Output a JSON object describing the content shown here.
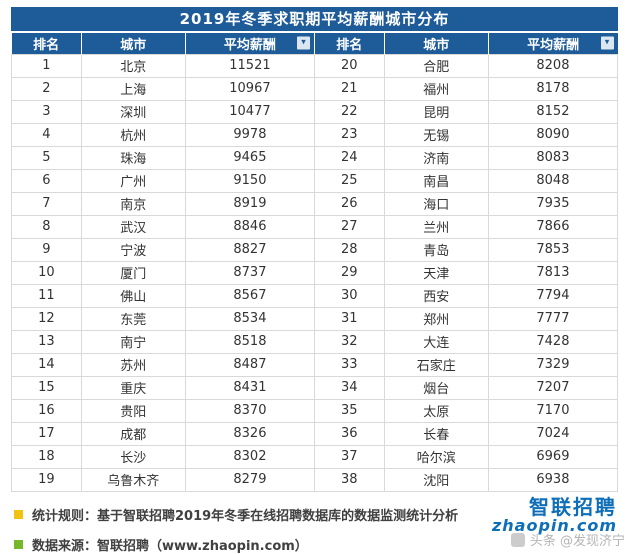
{
  "title": "2019年冬季求职期平均薪酬城市分布",
  "headers": {
    "rank": "排名",
    "city": "城市",
    "salary": "平均薪酬"
  },
  "chart_data": {
    "type": "table",
    "title": "2019年冬季求职期平均薪酬城市分布",
    "columns": [
      "排名",
      "城市",
      "平均薪酬"
    ],
    "rows": [
      [
        1,
        "北京",
        11521
      ],
      [
        2,
        "上海",
        10967
      ],
      [
        3,
        "深圳",
        10477
      ],
      [
        4,
        "杭州",
        9978
      ],
      [
        5,
        "珠海",
        9465
      ],
      [
        6,
        "广州",
        9150
      ],
      [
        7,
        "南京",
        8919
      ],
      [
        8,
        "武汉",
        8846
      ],
      [
        9,
        "宁波",
        8827
      ],
      [
        10,
        "厦门",
        8737
      ],
      [
        11,
        "佛山",
        8567
      ],
      [
        12,
        "东莞",
        8534
      ],
      [
        13,
        "南宁",
        8518
      ],
      [
        14,
        "苏州",
        8487
      ],
      [
        15,
        "重庆",
        8431
      ],
      [
        16,
        "贵阳",
        8370
      ],
      [
        17,
        "成都",
        8326
      ],
      [
        18,
        "长沙",
        8302
      ],
      [
        19,
        "乌鲁木齐",
        8279
      ],
      [
        20,
        "合肥",
        8208
      ],
      [
        21,
        "福州",
        8178
      ],
      [
        22,
        "昆明",
        8152
      ],
      [
        23,
        "无锡",
        8090
      ],
      [
        24,
        "济南",
        8083
      ],
      [
        25,
        "南昌",
        8048
      ],
      [
        26,
        "海口",
        7935
      ],
      [
        27,
        "兰州",
        7866
      ],
      [
        28,
        "青岛",
        7853
      ],
      [
        29,
        "天津",
        7813
      ],
      [
        30,
        "西安",
        7794
      ],
      [
        31,
        "郑州",
        7777
      ],
      [
        32,
        "大连",
        7428
      ],
      [
        33,
        "石家庄",
        7329
      ],
      [
        34,
        "烟台",
        7207
      ],
      [
        35,
        "太原",
        7170
      ],
      [
        36,
        "长春",
        7024
      ],
      [
        37,
        "哈尔滨",
        6969
      ],
      [
        38,
        "沈阳",
        6938
      ]
    ]
  },
  "footer": {
    "stat_rule": "统计规则：基于智联招聘2019年冬季在线招聘数据库的数据监测统计分析",
    "data_source": "数据来源：智联招聘（www.zhaopin.com）"
  },
  "logo": {
    "brand": "智联招聘",
    "domain": "zhaopin.com"
  },
  "watermark": "头条 @发现济宁",
  "colors": {
    "header_bg": "#1e5b99",
    "grid_border": "#d9d9d9",
    "bullet_yellow": "#f2c211",
    "bullet_green": "#76b82a",
    "logo_blue": "#0e6eb8"
  }
}
